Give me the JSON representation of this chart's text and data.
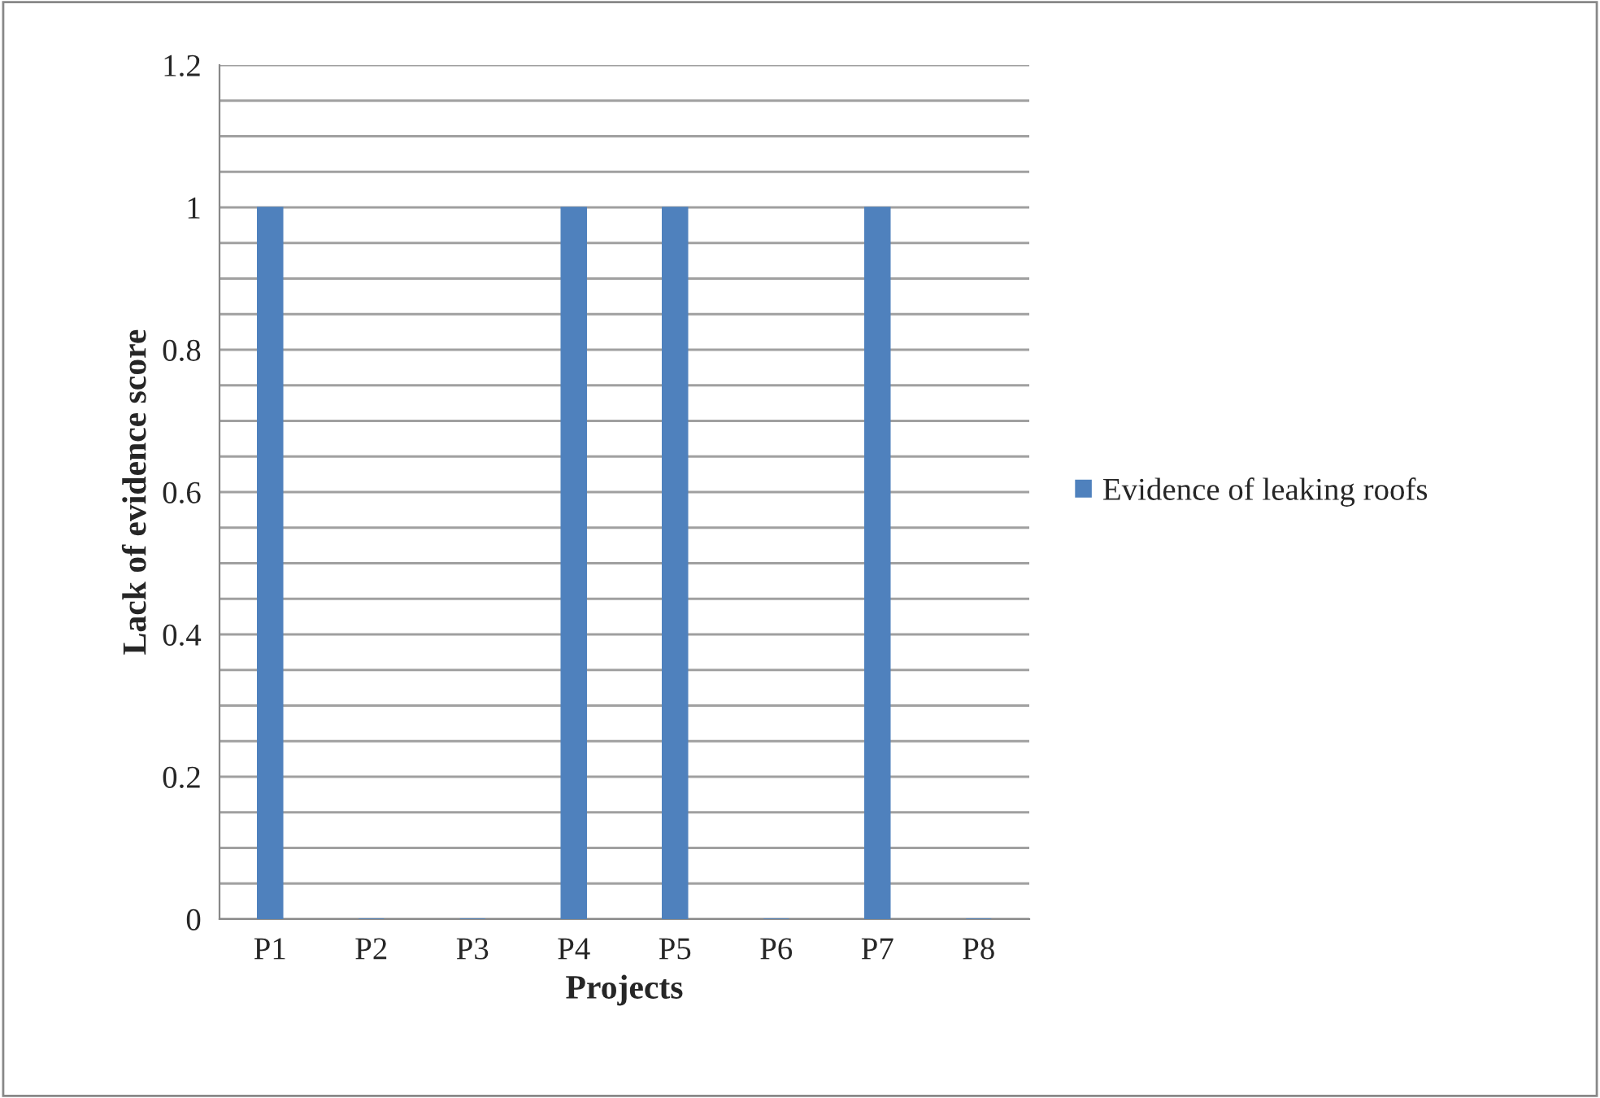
{
  "chart_data": {
    "type": "bar",
    "xlabel": "Projects",
    "ylabel": "Lack of evidence score",
    "categories": [
      "P1",
      "P2",
      "P3",
      "P4",
      "P5",
      "P6",
      "P7",
      "P8"
    ],
    "series": [
      {
        "name": "Evidence of leaking roofs",
        "color": "#4f81bd",
        "values": [
          1,
          0,
          0,
          1,
          1,
          0,
          1,
          0
        ]
      }
    ],
    "ylim": [
      0,
      1.2
    ],
    "yticks": [
      0,
      {
        "value": 0.05,
        "label": null
      },
      {
        "value": 0.1,
        "label": null
      },
      {
        "value": 0.15,
        "label": null
      },
      0.2,
      {
        "value": 0.25,
        "label": null
      },
      {
        "value": 0.3,
        "label": null
      },
      {
        "value": 0.35,
        "label": null
      },
      0.4,
      {
        "value": 0.45,
        "label": null
      },
      {
        "value": 0.5,
        "label": null
      },
      {
        "value": 0.55,
        "label": null
      },
      0.6,
      {
        "value": 0.65,
        "label": null
      },
      {
        "value": 0.7,
        "label": null
      },
      {
        "value": 0.75,
        "label": null
      },
      0.8,
      {
        "value": 0.85,
        "label": null
      },
      {
        "value": 0.9,
        "label": null
      },
      {
        "value": 0.95,
        "label": null
      },
      1,
      {
        "value": 1.05,
        "label": null
      },
      {
        "value": 1.1,
        "label": null
      },
      {
        "value": 1.15,
        "label": null
      },
      1.2
    ],
    "grid": "y",
    "legend": "right"
  }
}
